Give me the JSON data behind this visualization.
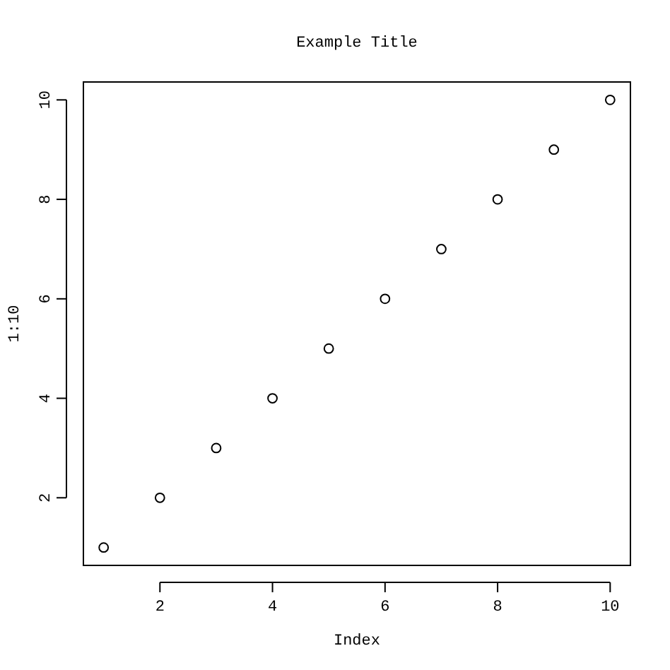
{
  "chart_data": {
    "type": "scatter",
    "title": "Example Title",
    "xlabel": "Index",
    "ylabel": "1:10",
    "x": [
      1,
      2,
      3,
      4,
      5,
      6,
      7,
      8,
      9,
      10
    ],
    "values": [
      1,
      2,
      3,
      4,
      5,
      6,
      7,
      8,
      9,
      10
    ],
    "color": "#000000",
    "marker": "circle",
    "grid": false,
    "xlim": [
      0.64,
      10.36
    ],
    "ylim": [
      0.64,
      10.36
    ],
    "xticks": [
      2,
      4,
      6,
      8,
      10
    ],
    "yticks": [
      2,
      4,
      6,
      8,
      10
    ]
  }
}
